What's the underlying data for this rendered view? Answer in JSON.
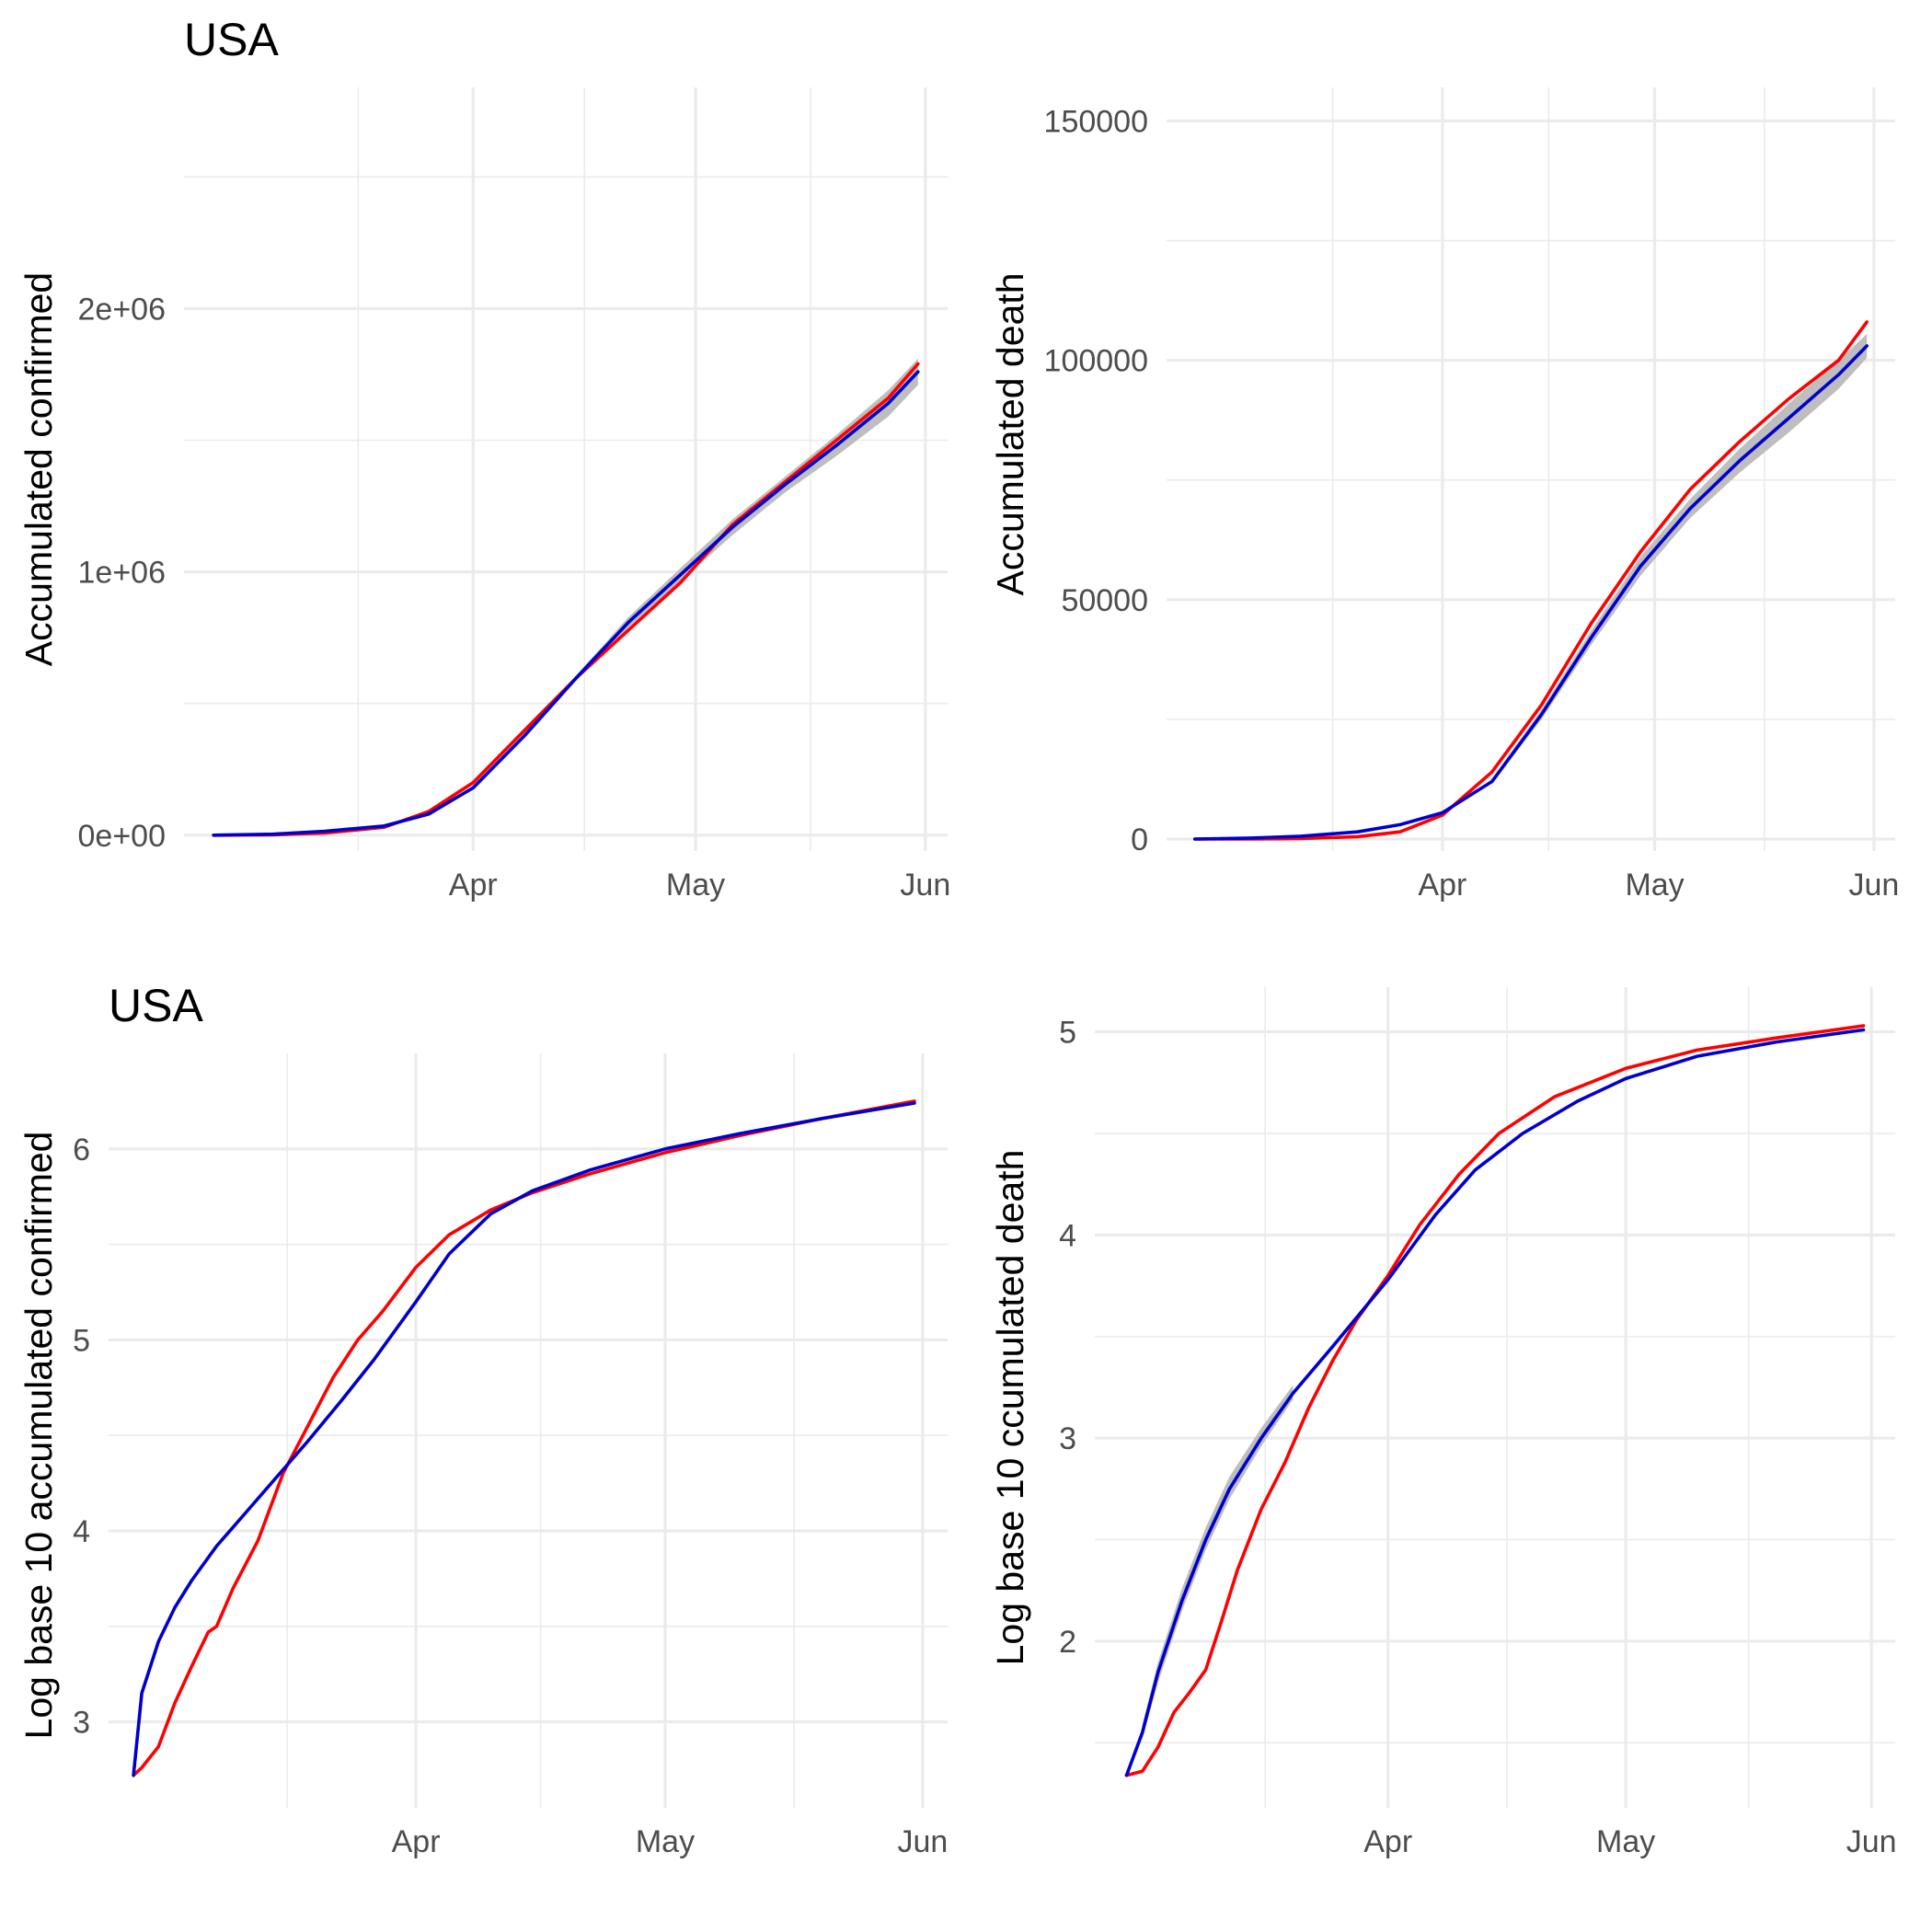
{
  "chart_data": [
    {
      "type": "line",
      "title": "USA",
      "xlabel": "",
      "ylabel": "Accumulated confirmed",
      "x_axis": {
        "ticks": [
          "Apr",
          "May",
          "Jun"
        ],
        "tick_dates": [
          "2020-04-01",
          "2020-05-01",
          "2020-06-01"
        ],
        "range": [
          "2020-02-22",
          "2020-06-04"
        ]
      },
      "y_axis": {
        "ticks": [
          0,
          1000000,
          2000000
        ],
        "tick_labels": [
          "0e+00",
          "1e+06",
          "2e+06"
        ],
        "range": [
          -60000,
          2840000
        ]
      },
      "grid": true,
      "series": [
        {
          "color": "#ff0000",
          "x": [
            "2020-02-26",
            "2020-03-05",
            "2020-03-12",
            "2020-03-20",
            "2020-03-26",
            "2020-04-01",
            "2020-04-08",
            "2020-04-15",
            "2020-04-22",
            "2020-04-29",
            "2020-05-06",
            "2020-05-13",
            "2020-05-20",
            "2020-05-27",
            "2020-05-31"
          ],
          "values": [
            0,
            1000,
            8000,
            30000,
            90000,
            200000,
            400000,
            600000,
            780000,
            960000,
            1180000,
            1340000,
            1500000,
            1660000,
            1790000
          ]
        },
        {
          "color": "#0000cd",
          "x": [
            "2020-02-26",
            "2020-03-05",
            "2020-03-12",
            "2020-03-20",
            "2020-03-26",
            "2020-04-01",
            "2020-04-08",
            "2020-04-15",
            "2020-04-22",
            "2020-04-29",
            "2020-05-06",
            "2020-05-13",
            "2020-05-20",
            "2020-05-27",
            "2020-05-31"
          ],
          "values": [
            0,
            4000,
            15000,
            35000,
            80000,
            180000,
            380000,
            600000,
            810000,
            990000,
            1170000,
            1330000,
            1480000,
            1640000,
            1760000
          ]
        }
      ],
      "band": {
        "color": "#bebebe",
        "x": [
          "2020-04-15",
          "2020-04-22",
          "2020-04-29",
          "2020-05-06",
          "2020-05-13",
          "2020-05-20",
          "2020-05-27",
          "2020-05-31"
        ],
        "lower": [
          590000,
          790000,
          965000,
          1140000,
          1300000,
          1440000,
          1590000,
          1710000
        ],
        "upper": [
          610000,
          830000,
          1015000,
          1200000,
          1360000,
          1520000,
          1690000,
          1810000
        ]
      }
    },
    {
      "type": "line",
      "title": "",
      "xlabel": "",
      "ylabel": "Accumulated death",
      "x_axis": {
        "ticks": [
          "Apr",
          "May",
          "Jun"
        ],
        "tick_dates": [
          "2020-04-01",
          "2020-05-01",
          "2020-06-01"
        ],
        "range": [
          "2020-02-22",
          "2020-06-04"
        ]
      },
      "y_axis": {
        "ticks": [
          0,
          50000,
          100000,
          150000
        ],
        "tick_labels": [
          "0",
          "50000",
          "100000",
          "150000"
        ],
        "range": [
          -2500,
          157000
        ]
      },
      "grid": true,
      "series": [
        {
          "color": "#ff0000",
          "x": [
            "2020-02-26",
            "2020-03-05",
            "2020-03-12",
            "2020-03-20",
            "2020-03-26",
            "2020-04-01",
            "2020-04-08",
            "2020-04-15",
            "2020-04-22",
            "2020-04-29",
            "2020-05-06",
            "2020-05-13",
            "2020-05-20",
            "2020-05-27",
            "2020-05-31"
          ],
          "values": [
            0,
            0,
            100,
            500,
            1500,
            5000,
            14000,
            28000,
            45000,
            60000,
            73000,
            83000,
            92000,
            100000,
            108000
          ]
        },
        {
          "color": "#0000cd",
          "x": [
            "2020-02-26",
            "2020-03-05",
            "2020-03-12",
            "2020-03-20",
            "2020-03-26",
            "2020-04-01",
            "2020-04-08",
            "2020-04-15",
            "2020-04-22",
            "2020-04-29",
            "2020-05-06",
            "2020-05-13",
            "2020-05-20",
            "2020-05-27",
            "2020-05-31"
          ],
          "values": [
            0,
            200,
            600,
            1500,
            3000,
            5500,
            12000,
            26000,
            42000,
            57000,
            69000,
            79000,
            88000,
            97000,
            103000
          ]
        }
      ],
      "band": {
        "color": "#bebebe",
        "x": [
          "2020-04-08",
          "2020-04-15",
          "2020-04-22",
          "2020-04-29",
          "2020-05-06",
          "2020-05-13",
          "2020-05-20",
          "2020-05-27",
          "2020-05-31"
        ],
        "lower": [
          11500,
          25000,
          40500,
          55000,
          67000,
          76500,
          85000,
          94000,
          100500
        ],
        "upper": [
          12500,
          27000,
          43500,
          59000,
          71000,
          81500,
          91000,
          100000,
          105500
        ]
      }
    },
    {
      "type": "line",
      "title": "USA",
      "xlabel": "",
      "ylabel": "Log base 10 accumulated confirmed",
      "x_axis": {
        "ticks": [
          "Apr",
          "May",
          "Jun"
        ],
        "tick_dates": [
          "2020-04-01",
          "2020-05-01",
          "2020-06-01"
        ],
        "range": [
          "2020-02-24",
          "2020-06-04"
        ]
      },
      "y_axis": {
        "ticks": [
          3,
          4,
          5,
          6
        ],
        "tick_labels": [
          "3",
          "4",
          "5",
          "6"
        ],
        "range": [
          2.55,
          6.5
        ]
      },
      "grid": true,
      "series": [
        {
          "color": "#ff0000",
          "x": [
            "2020-02-27",
            "2020-02-28",
            "2020-03-01",
            "2020-03-03",
            "2020-03-05",
            "2020-03-07",
            "2020-03-08",
            "2020-03-10",
            "2020-03-13",
            "2020-03-16",
            "2020-03-19",
            "2020-03-22",
            "2020-03-25",
            "2020-03-28",
            "2020-04-01",
            "2020-04-05",
            "2020-04-10",
            "2020-04-15",
            "2020-04-22",
            "2020-05-01",
            "2020-05-10",
            "2020-05-20",
            "2020-05-31"
          ],
          "values": [
            2.72,
            2.76,
            2.87,
            3.1,
            3.29,
            3.47,
            3.5,
            3.7,
            3.95,
            4.3,
            4.55,
            4.8,
            5.0,
            5.15,
            5.38,
            5.55,
            5.68,
            5.77,
            5.87,
            5.98,
            6.07,
            6.16,
            6.25
          ]
        },
        {
          "color": "#0000cd",
          "x": [
            "2020-02-27",
            "2020-02-28",
            "2020-03-01",
            "2020-03-03",
            "2020-03-05",
            "2020-03-08",
            "2020-03-11",
            "2020-03-15",
            "2020-03-19",
            "2020-03-23",
            "2020-03-27",
            "2020-04-01",
            "2020-04-05",
            "2020-04-10",
            "2020-04-15",
            "2020-04-22",
            "2020-05-01",
            "2020-05-10",
            "2020-05-20",
            "2020-05-31"
          ],
          "values": [
            2.72,
            3.15,
            3.42,
            3.6,
            3.74,
            3.92,
            4.07,
            4.27,
            4.47,
            4.68,
            4.9,
            5.2,
            5.45,
            5.66,
            5.78,
            5.89,
            6.0,
            6.08,
            6.16,
            6.24
          ]
        }
      ]
    },
    {
      "type": "line",
      "title": "",
      "xlabel": "",
      "ylabel": "Log base 10 ccumulated death",
      "x_axis": {
        "ticks": [
          "Apr",
          "May",
          "Jun"
        ],
        "tick_dates": [
          "2020-04-01",
          "2020-05-01",
          "2020-06-01"
        ],
        "range": [
          "2020-02-24",
          "2020-06-04"
        ]
      },
      "y_axis": {
        "ticks": [
          2,
          3,
          4,
          5
        ],
        "tick_labels": [
          "2",
          "3",
          "4",
          "5"
        ],
        "range": [
          1.18,
          5.22
        ]
      },
      "grid": true,
      "series": [
        {
          "color": "#ff0000",
          "x": [
            "2020-02-28",
            "2020-03-01",
            "2020-03-03",
            "2020-03-05",
            "2020-03-07",
            "2020-03-09",
            "2020-03-11",
            "2020-03-13",
            "2020-03-16",
            "2020-03-19",
            "2020-03-22",
            "2020-03-25",
            "2020-03-28",
            "2020-04-01",
            "2020-04-05",
            "2020-04-10",
            "2020-04-15",
            "2020-04-22",
            "2020-05-01",
            "2020-05-10",
            "2020-05-20",
            "2020-05-31"
          ],
          "values": [
            1.34,
            1.36,
            1.48,
            1.65,
            1.75,
            1.86,
            2.1,
            2.35,
            2.65,
            2.88,
            3.15,
            3.38,
            3.58,
            3.8,
            4.05,
            4.3,
            4.5,
            4.68,
            4.82,
            4.91,
            4.97,
            5.03
          ]
        },
        {
          "color": "#0000cd",
          "x": [
            "2020-02-28",
            "2020-03-01",
            "2020-03-03",
            "2020-03-06",
            "2020-03-09",
            "2020-03-12",
            "2020-03-16",
            "2020-03-20",
            "2020-03-25",
            "2020-04-01",
            "2020-04-07",
            "2020-04-12",
            "2020-04-18",
            "2020-04-25",
            "2020-05-01",
            "2020-05-10",
            "2020-05-20",
            "2020-05-31"
          ],
          "values": [
            1.34,
            1.55,
            1.85,
            2.2,
            2.5,
            2.75,
            3.0,
            3.22,
            3.45,
            3.78,
            4.1,
            4.32,
            4.5,
            4.66,
            4.77,
            4.88,
            4.95,
            5.01
          ]
        }
      ],
      "band": {
        "color": "#bebebe",
        "x": [
          "2020-03-01",
          "2020-03-03",
          "2020-03-06",
          "2020-03-09",
          "2020-03-12",
          "2020-03-16",
          "2020-03-20"
        ],
        "lower": [
          1.52,
          1.8,
          2.15,
          2.45,
          2.7,
          2.96,
          3.19
        ],
        "upper": [
          1.59,
          1.9,
          2.26,
          2.56,
          2.81,
          3.05,
          3.26
        ]
      }
    }
  ]
}
